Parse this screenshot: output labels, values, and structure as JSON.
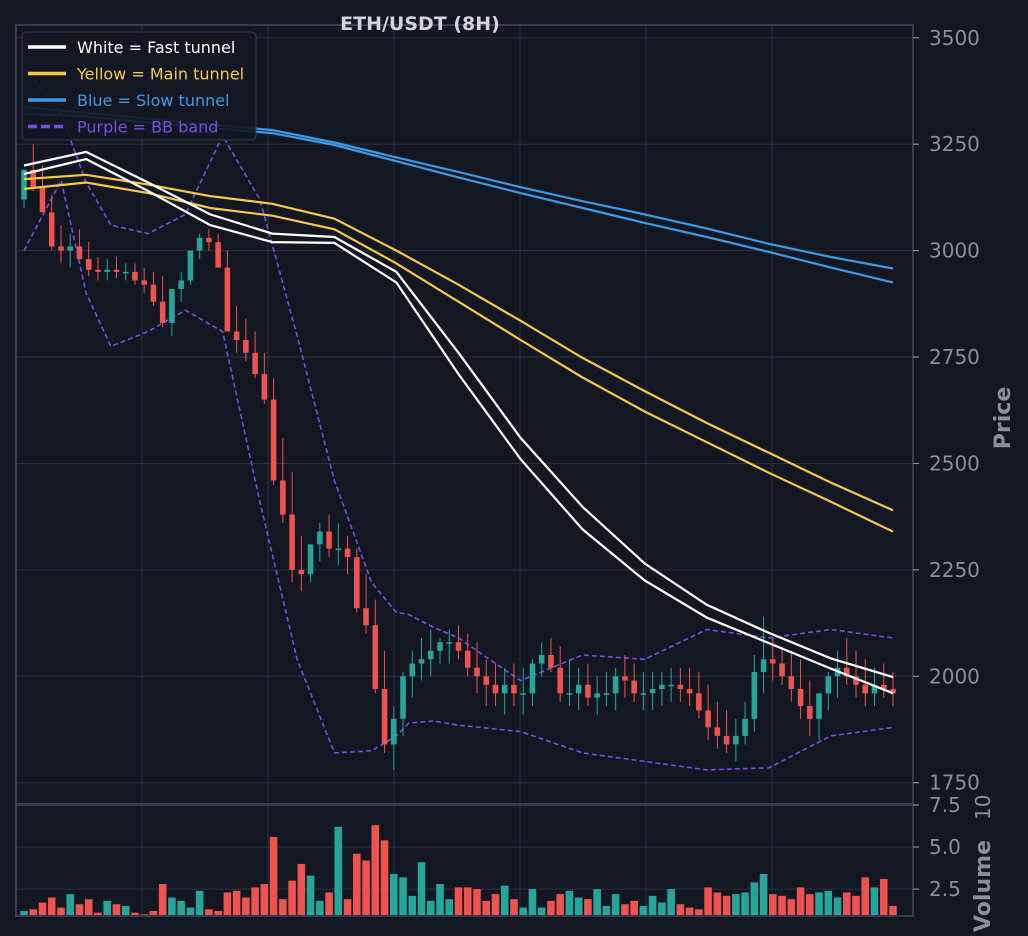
{
  "chart_data": {
    "type": "candlestick",
    "title": "ETH/USDT (8H)",
    "ylabel": "Price",
    "volume_label": "Volume",
    "volume_exponent": "10",
    "ylim": [
      1700,
      3530
    ],
    "yticks": [
      "1750",
      "2000",
      "2250",
      "2500",
      "2750",
      "3000",
      "3250",
      "3500"
    ],
    "ytick_values": [
      1750,
      2000,
      2250,
      2500,
      2750,
      3000,
      3250,
      3500
    ],
    "volume_ylim": [
      0.9,
      7.5
    ],
    "volume_ticks": [
      "2.5",
      "5.0",
      "7.5"
    ],
    "volume_tick_values": [
      2.5,
      5.0,
      7.5
    ],
    "legend_position": "top-left",
    "legend": [
      {
        "label": "White = Fast tunnel",
        "color": "#ffffff",
        "dashed": false
      },
      {
        "label": "Yellow = Main tunnel",
        "color": "#f6c945",
        "dashed": false
      },
      {
        "label": "Blue = Slow tunnel",
        "color": "#3b9ae8",
        "dashed": false
      },
      {
        "label": "Purple = BB band",
        "color": "#7b4be6",
        "dashed": true
      }
    ],
    "colors": {
      "up": "#26a69a",
      "down": "#ef5350",
      "background": "#131722",
      "grid": "#283042",
      "frame": "#363c4e",
      "text": "#8a8f99",
      "title": "#d1d4dc"
    },
    "tunnels": {
      "fast": {
        "color": "#ffffff",
        "x": [
          0,
          10,
          20,
          30,
          40,
          50,
          60,
          70,
          80,
          90,
          100,
          110,
          120,
          130,
          140
        ],
        "upper": [
          3200,
          3232,
          3160,
          3085,
          3040,
          3032,
          2950,
          2760,
          2560,
          2398,
          2265,
          2168,
          2102,
          2042,
          1998
        ],
        "lower": [
          3180,
          3215,
          3140,
          3060,
          3020,
          3018,
          2925,
          2710,
          2510,
          2345,
          2225,
          2138,
          2078,
          2018,
          1960
        ]
      },
      "main": {
        "color": "#f6c945",
        "x": [
          0,
          10,
          20,
          30,
          40,
          50,
          60,
          70,
          80,
          90,
          100,
          110,
          120,
          130,
          140
        ],
        "upper": [
          3168,
          3178,
          3155,
          3128,
          3110,
          3075,
          3000,
          2920,
          2835,
          2748,
          2670,
          2595,
          2525,
          2455,
          2390
        ],
        "lower": [
          3145,
          3160,
          3135,
          3100,
          3082,
          3050,
          2970,
          2880,
          2790,
          2702,
          2622,
          2550,
          2478,
          2410,
          2340
        ]
      },
      "slow": {
        "color": "#3b9ae8",
        "x": [
          0,
          10,
          20,
          30,
          40,
          50,
          60,
          70,
          80,
          90,
          100,
          110,
          120,
          130,
          140
        ],
        "upper": [
          3337,
          3324,
          3310,
          3296,
          3283,
          3254,
          3219,
          3185,
          3149,
          3116,
          3085,
          3052,
          3016,
          2985,
          2958
        ],
        "lower": [
          3322,
          3315,
          3301,
          3288,
          3276,
          3248,
          3210,
          3172,
          3135,
          3100,
          3065,
          3032,
          2997,
          2960,
          2925
        ]
      }
    },
    "bb_band": {
      "color": "#7b4be6",
      "x": [
        0,
        6,
        10,
        14,
        20,
        26,
        32,
        38,
        44,
        50,
        56,
        60,
        62,
        66,
        70,
        80,
        90,
        100,
        110,
        120,
        130,
        140
      ],
      "upper": [
        3430,
        3320,
        3160,
        3060,
        3040,
        3085,
        3270,
        3120,
        2800,
        2460,
        2220,
        2150,
        2145,
        2115,
        2090,
        1990,
        2050,
        2040,
        2110,
        2090,
        2110,
        2090
      ],
      "lower": [
        3000,
        3165,
        2900,
        2775,
        2810,
        2860,
        2810,
        2410,
        2040,
        1820,
        1825,
        1860,
        1890,
        1895,
        1885,
        1870,
        1820,
        1800,
        1780,
        1785,
        1860,
        1880
      ]
    },
    "candles": {
      "open": [
        3120,
        3190,
        3150,
        3090,
        3010,
        3000,
        3010,
        2980,
        2955,
        2950,
        2955,
        2950,
        2950,
        2930,
        2920,
        2880,
        2830,
        2910,
        2930,
        3000,
        3030,
        3020,
        2960,
        2810,
        2790,
        2760,
        2710,
        2650,
        2460,
        2380,
        2250,
        2240,
        2310,
        2340,
        2300,
        2300,
        2280,
        2160,
        2120,
        1970,
        1840,
        1900,
        2000,
        2030,
        2040,
        2060,
        2080,
        2080,
        2060,
        2020,
        2000,
        1980,
        1960,
        1980,
        1960,
        1960,
        2030,
        2050,
        2020,
        1960,
        1960,
        1980,
        1950,
        1960,
        1960,
        2000,
        1990,
        1960,
        1960,
        1970,
        1980,
        1980,
        1970,
        1960,
        1920,
        1880,
        1860,
        1840,
        1860,
        1900,
        2010,
        2040,
        2030,
        2000,
        1970,
        1930,
        1900,
        1960,
        2000,
        2020,
        2000,
        1980,
        1960,
        1980,
        1970
      ],
      "high": [
        3180,
        3250,
        3200,
        3130,
        3060,
        3040,
        3050,
        3020,
        2985,
        2980,
        2985,
        2970,
        2970,
        2960,
        2950,
        2940,
        2910,
        2950,
        2990,
        3040,
        3050,
        3040,
        3000,
        2870,
        2840,
        2810,
        2760,
        2700,
        2560,
        2480,
        2330,
        2290,
        2360,
        2380,
        2360,
        2330,
        2300,
        2240,
        2180,
        2060,
        1930,
        2010,
        2060,
        2090,
        2110,
        2090,
        2110,
        2120,
        2100,
        2080,
        2040,
        2030,
        2020,
        2030,
        2020,
        2040,
        2080,
        2090,
        2070,
        2040,
        2020,
        2030,
        2000,
        2010,
        2020,
        2050,
        2030,
        2010,
        2010,
        2010,
        2020,
        2020,
        2020,
        2010,
        1980,
        1940,
        1920,
        1900,
        1940,
        2050,
        2140,
        2090,
        2070,
        2060,
        2040,
        1990,
        1960,
        2010,
        2060,
        2090,
        2060,
        2040,
        2020,
        2030,
        2010
      ],
      "low": [
        3100,
        3140,
        3090,
        3000,
        2970,
        2960,
        2980,
        2940,
        2930,
        2930,
        2935,
        2930,
        2920,
        2900,
        2870,
        2820,
        2800,
        2880,
        2920,
        2980,
        3000,
        2960,
        2820,
        2760,
        2740,
        2700,
        2640,
        2450,
        2360,
        2220,
        2200,
        2220,
        2270,
        2280,
        2260,
        2240,
        2150,
        2100,
        1960,
        1820,
        1780,
        1860,
        1950,
        1990,
        2000,
        2030,
        2030,
        2040,
        2000,
        1960,
        1930,
        1930,
        1910,
        1930,
        1910,
        1930,
        2000,
        2010,
        1940,
        1930,
        1920,
        1930,
        1910,
        1930,
        1920,
        1950,
        1940,
        1920,
        1920,
        1930,
        1940,
        1940,
        1930,
        1900,
        1850,
        1830,
        1820,
        1800,
        1840,
        1870,
        1960,
        1990,
        1980,
        1940,
        1900,
        1860,
        1850,
        1920,
        1950,
        1980,
        1950,
        1930,
        1930,
        1950,
        1930
      ],
      "close": [
        3190,
        3150,
        3090,
        3010,
        3000,
        3010,
        2980,
        2955,
        2950,
        2955,
        2950,
        2950,
        2930,
        2920,
        2880,
        2830,
        2910,
        2930,
        3000,
        3030,
        3020,
        2960,
        2810,
        2790,
        2760,
        2710,
        2650,
        2460,
        2380,
        2250,
        2240,
        2310,
        2340,
        2300,
        2300,
        2280,
        2160,
        2120,
        1970,
        1840,
        1900,
        2000,
        2030,
        2040,
        2060,
        2080,
        2080,
        2060,
        2020,
        2000,
        1980,
        1960,
        1980,
        1960,
        1960,
        2030,
        2050,
        2020,
        1960,
        1960,
        1980,
        1950,
        1960,
        1960,
        2000,
        1990,
        1960,
        1960,
        1970,
        1980,
        1980,
        1970,
        1960,
        1920,
        1880,
        1860,
        1840,
        1860,
        1900,
        2010,
        2040,
        2030,
        2000,
        1970,
        1930,
        1900,
        1960,
        2000,
        2020,
        2000,
        1980,
        1960,
        1980,
        1970,
        1960
      ],
      "volume": [
        1.2,
        1.3,
        1.7,
        2.0,
        1.4,
        2.2,
        1.6,
        1.9,
        1.1,
        1.8,
        1.6,
        1.5,
        1.1,
        1.0,
        1.2,
        2.8,
        2.0,
        1.8,
        1.4,
        2.4,
        1.3,
        1.2,
        2.3,
        2.4,
        2.0,
        2.6,
        2.8,
        5.6,
        1.9,
        3.0,
        4.0,
        3.3,
        1.8,
        2.3,
        6.2,
        1.9,
        4.6,
        4.2,
        6.3,
        5.4,
        3.4,
        3.2,
        2.1,
        4.1,
        1.8,
        2.8,
        1.9,
        2.6,
        2.6,
        2.5,
        1.8,
        2.2,
        2.7,
        1.9,
        1.4,
        2.5,
        1.4,
        1.8,
        2.2,
        2.4,
        2.0,
        1.9,
        2.5,
        1.5,
        2.2,
        1.6,
        1.8,
        1.5,
        2.1,
        1.7,
        2.5,
        1.6,
        1.4,
        1.3,
        2.6,
        2.3,
        2.1,
        2.2,
        2.3,
        2.9,
        3.4,
        2.2,
        2.1,
        1.9,
        2.6,
        2.2,
        2.3,
        2.4,
        2.0,
        2.3,
        2.1,
        3.2,
        2.6,
        3.1,
        1.5
      ]
    }
  }
}
